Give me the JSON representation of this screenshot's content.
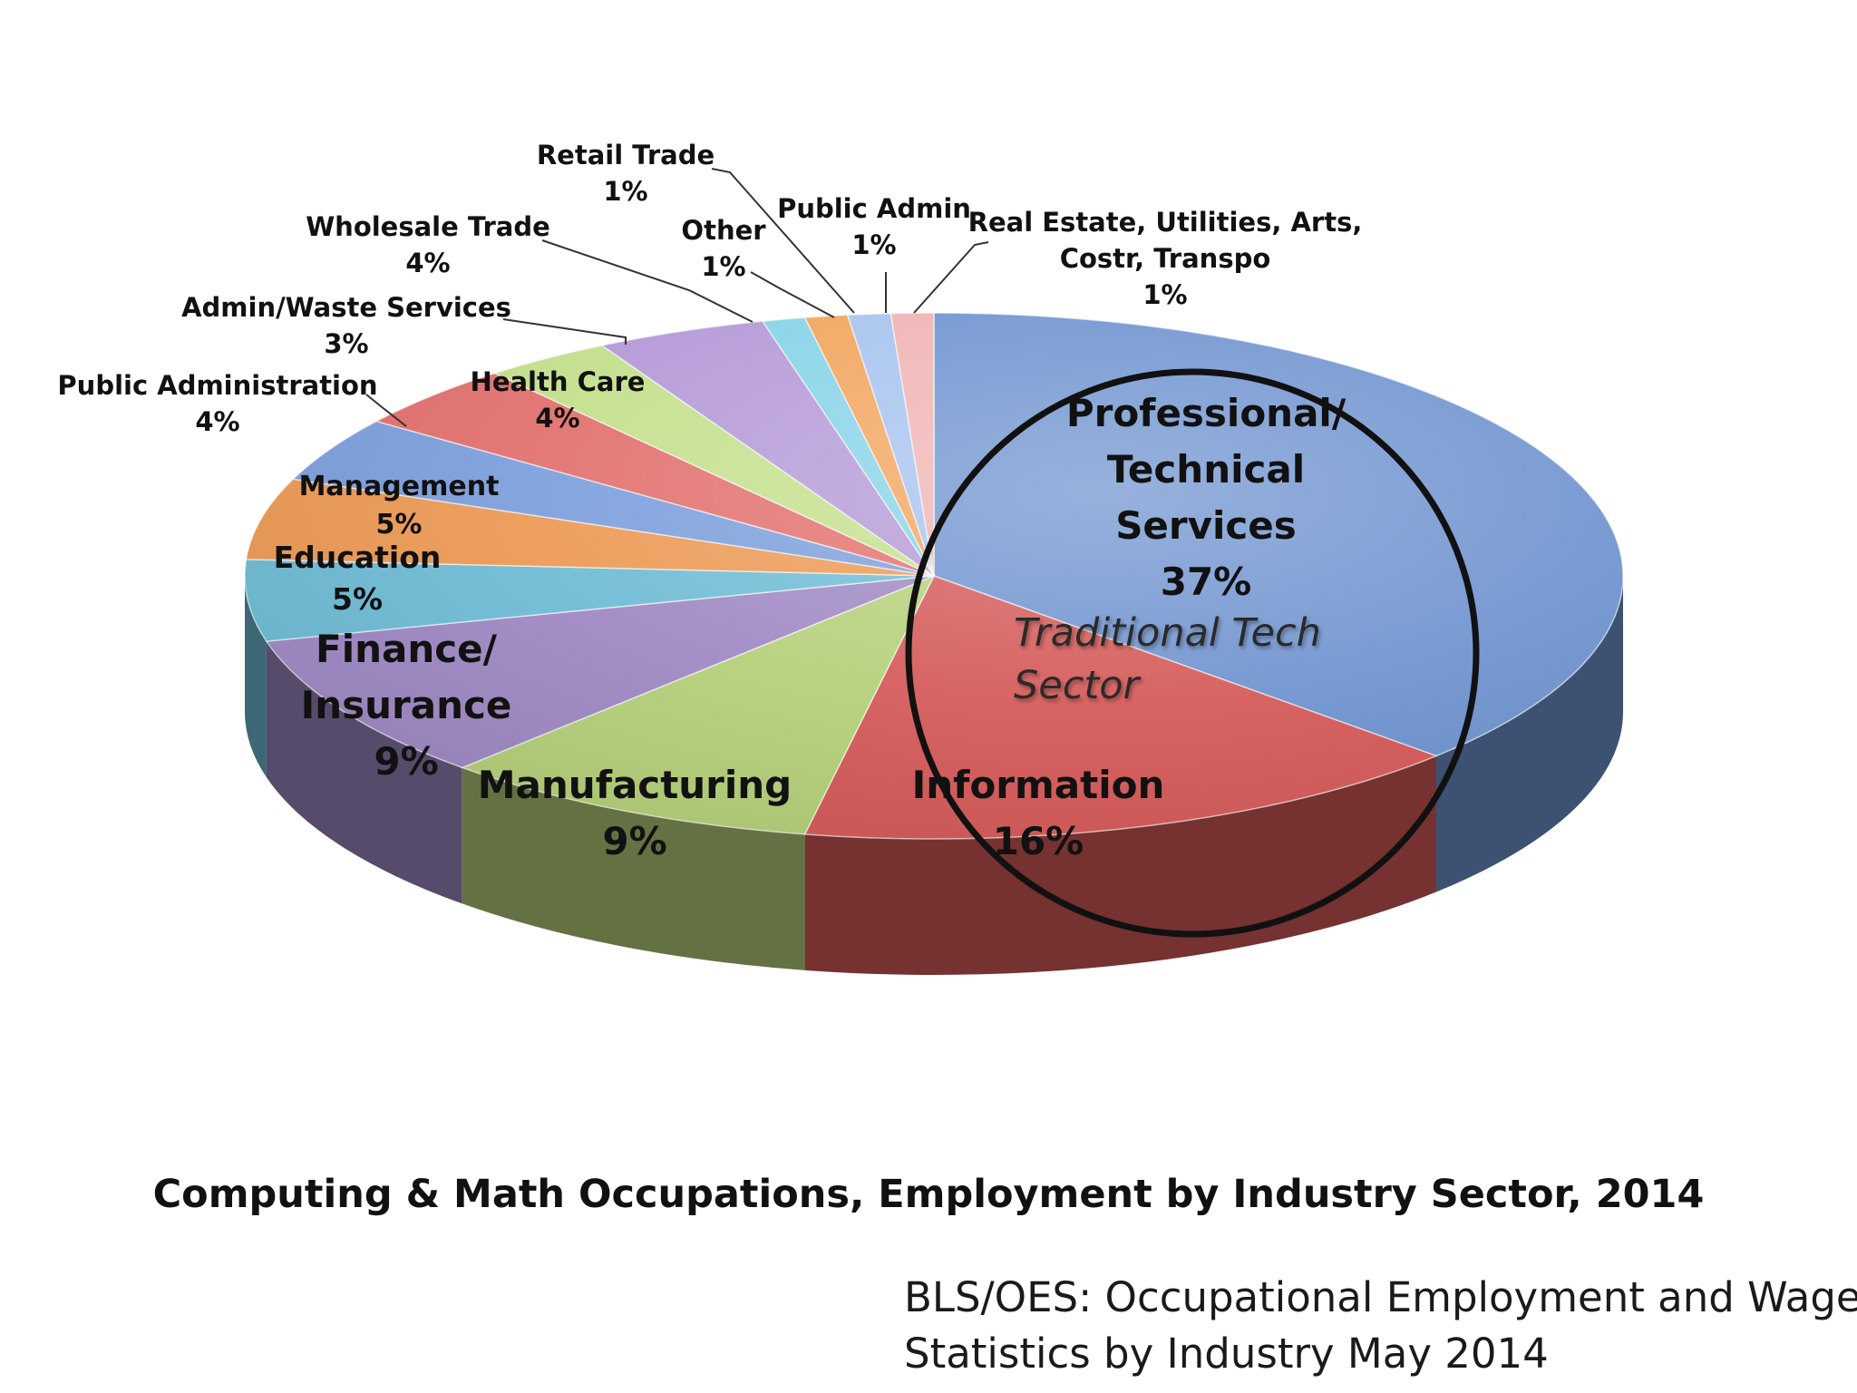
{
  "chart_data": {
    "type": "pie",
    "title": "Computing & Math Occupations, Employment by Industry Sector,  2014",
    "slices": [
      {
        "label": "Professional/ Technical Services",
        "value": 37,
        "value_label": "37%",
        "color": "#6f93cf"
      },
      {
        "label": "Information",
        "value": 16,
        "value_label": "16%",
        "color": "#d45a58"
      },
      {
        "label": "Manufacturing",
        "value": 9,
        "value_label": "9%",
        "color": "#b5d07a"
      },
      {
        "label": "Finance/ Insurance",
        "value": 9,
        "value_label": "9%",
        "color": "#9f89c4"
      },
      {
        "label": "Education",
        "value": 5,
        "value_label": "5%",
        "color": "#6fbcd5"
      },
      {
        "label": "Management",
        "value": 5,
        "value_label": "5%",
        "color": "#ec9a55"
      },
      {
        "label": "Public Administration",
        "value": 4,
        "value_label": "4%",
        "color": "#7d9fdc"
      },
      {
        "label": "Health Care",
        "value": 4,
        "value_label": "4%",
        "color": "#e2716e"
      },
      {
        "label": "Admin/Waste Services",
        "value": 3,
        "value_label": "3%",
        "color": "#c4e08d"
      },
      {
        "label": "Wholesale Trade",
        "value": 4,
        "value_label": "4%",
        "color": "#b59ad8"
      },
      {
        "label": "Other",
        "value": 1,
        "value_label": "1%",
        "color": "#87d3e8"
      },
      {
        "label": "Retail Trade",
        "value": 1,
        "value_label": "1%",
        "color": "#f2a55e"
      },
      {
        "label": "Public Admin",
        "value": 1,
        "value_label": "1%",
        "color": "#a7c3ef"
      },
      {
        "label": "Real Estate, Utilities, Arts, Costr, Transpo",
        "value": 1,
        "value_label": "1%",
        "color": "#f0b3b3"
      }
    ],
    "annotation": {
      "label": "Traditional Tech Sector"
    },
    "source_lines": [
      "BLS/OES: Occupational Employment and Wage",
      "Statistics by Industry May 2014"
    ]
  }
}
